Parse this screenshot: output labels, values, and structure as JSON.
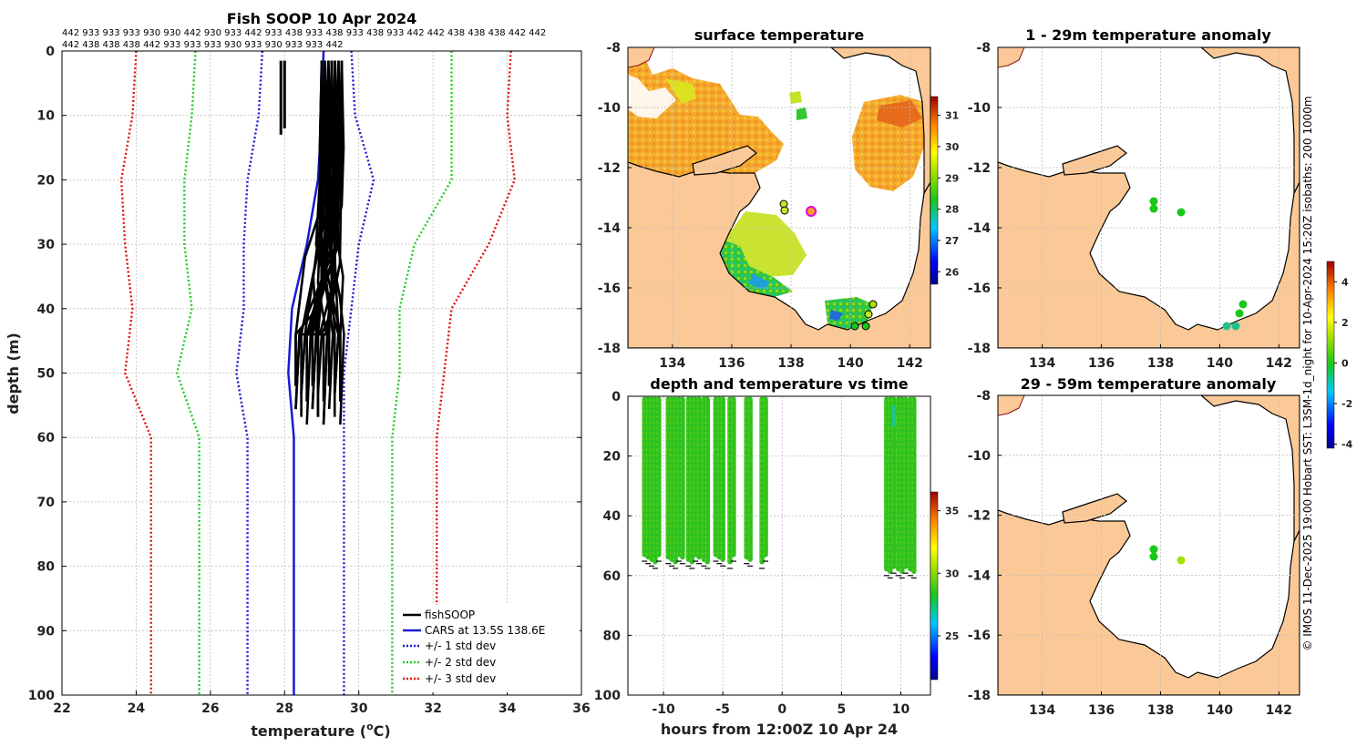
{
  "chart_data": [
    {
      "id": "profile",
      "type": "line",
      "title": "Fish SOOP 10 Apr 2024",
      "xlabel": "temperature (",
      "xlabel_unit": "C)",
      "xlabel_sup": "o",
      "ylabel": "depth (m)",
      "xlim": [
        22,
        36
      ],
      "ylim": [
        0,
        100
      ],
      "xticks": [
        "22",
        "24",
        "26",
        "28",
        "30",
        "32",
        "34",
        "36"
      ],
      "yticks": [
        "0",
        "10",
        "20",
        "30",
        "40",
        "50",
        "60",
        "70",
        "80",
        "90",
        "100"
      ],
      "header_row1": "442 933 933 933 930 930 442 930 933 442 933 438 933 438 933 438 933 442 442 438 438 438 442 442",
      "header_row2": "442 438 438 438 442 933 933 933 930 933 930 933 933 442",
      "legend": [
        "fishSOOP",
        "CARS at 13.5S 138.6E",
        "+/- 1 std dev",
        "+/- 2 std dev",
        "+/- 3 std dev"
      ],
      "colors": {
        "fishsoop": "#000000",
        "cars": "#1a1ad6",
        "std1": "#1a1ad6",
        "std2": "#22cc22",
        "std3": "#e01010"
      },
      "series": [
        {
          "name": "CARS",
          "points": [
            [
              29.05,
              0
            ],
            [
              29.0,
              10
            ],
            [
              28.9,
              20
            ],
            [
              28.6,
              30
            ],
            [
              28.2,
              40
            ],
            [
              28.1,
              50
            ],
            [
              28.25,
              60
            ],
            [
              28.25,
              80
            ],
            [
              28.25,
              100
            ]
          ]
        },
        {
          "name": "+1 std",
          "points": [
            [
              29.8,
              0
            ],
            [
              29.9,
              10
            ],
            [
              30.4,
              20
            ],
            [
              30.0,
              30
            ],
            [
              29.8,
              40
            ],
            [
              29.6,
              50
            ],
            [
              29.6,
              60
            ],
            [
              29.6,
              100
            ]
          ]
        },
        {
          "name": "-1 std",
          "points": [
            [
              27.4,
              0
            ],
            [
              27.3,
              10
            ],
            [
              27.0,
              20
            ],
            [
              26.9,
              30
            ],
            [
              26.9,
              40
            ],
            [
              26.7,
              50
            ],
            [
              27.0,
              60
            ],
            [
              27.0,
              100
            ]
          ]
        },
        {
          "name": "+2 std",
          "points": [
            [
              32.5,
              0
            ],
            [
              32.5,
              10
            ],
            [
              32.5,
              20
            ],
            [
              31.5,
              30
            ],
            [
              31.1,
              40
            ],
            [
              31.1,
              50
            ],
            [
              30.9,
              60
            ],
            [
              30.9,
              100
            ]
          ]
        },
        {
          "name": "-2 std",
          "points": [
            [
              25.6,
              0
            ],
            [
              25.5,
              10
            ],
            [
              25.3,
              20
            ],
            [
              25.3,
              30
            ],
            [
              25.5,
              40
            ],
            [
              25.1,
              50
            ],
            [
              25.7,
              60
            ],
            [
              25.7,
              100
            ]
          ]
        },
        {
          "name": "+3 std",
          "points": [
            [
              34.1,
              0
            ],
            [
              34.0,
              10
            ],
            [
              34.2,
              20
            ],
            [
              33.5,
              30
            ],
            [
              32.5,
              40
            ],
            [
              32.3,
              50
            ],
            [
              32.1,
              60
            ],
            [
              32.1,
              100
            ]
          ]
        },
        {
          "name": "-3 std",
          "points": [
            [
              24.0,
              0
            ],
            [
              23.9,
              10
            ],
            [
              23.6,
              20
            ],
            [
              23.7,
              30
            ],
            [
              23.9,
              40
            ],
            [
              23.7,
              50
            ],
            [
              24.4,
              60
            ],
            [
              24.4,
              100
            ]
          ]
        }
      ]
    },
    {
      "id": "sst_map",
      "type": "heatmap",
      "title": "surface temperature",
      "xlim": [
        132.5,
        142.7
      ],
      "ylim": [
        -18,
        -8
      ],
      "xticks": [
        "134",
        "136",
        "138",
        "140",
        "142"
      ],
      "yticks": [
        "-8",
        "-10",
        "-12",
        "-14",
        "-16",
        "-18"
      ],
      "colorbar": {
        "min": 25.6,
        "max": 31.6,
        "ticks": [
          "31",
          "30",
          "29",
          "28",
          "27",
          "26"
        ]
      }
    },
    {
      "id": "anom1",
      "type": "heatmap",
      "title": "1 - 29m temperature anomaly",
      "xlim": [
        132.5,
        142.7
      ],
      "ylim": [
        -18,
        -8
      ],
      "xticks": [
        "134",
        "136",
        "138",
        "140",
        "142"
      ],
      "yticks": [
        "-8",
        "-10",
        "-12",
        "-14",
        "-16",
        "-18"
      ],
      "colorbar": {
        "min": -4.2,
        "max": 5.0,
        "ticks": [
          "4",
          "2",
          "0",
          "-2",
          "-4"
        ]
      }
    },
    {
      "id": "time_depth",
      "type": "scatter",
      "title": "depth and temperature vs time",
      "xlabel": "hours from 12:00Z 10 Apr 24",
      "xlim": [
        -13,
        12.5
      ],
      "ylim": [
        0,
        100
      ],
      "xticks": [
        "-10",
        "-5",
        "0",
        "5",
        "10"
      ],
      "yticks": [
        "0",
        "20",
        "40",
        "60",
        "80",
        "100"
      ],
      "colorbar": {
        "min": 21.5,
        "max": 36.5,
        "ticks": [
          "35",
          "30",
          "25"
        ]
      },
      "casts": [
        -11.6,
        -11.3,
        -11.0,
        -10.7,
        -10.4,
        -9.6,
        -9.3,
        -9.0,
        -8.7,
        -8.4,
        -7.9,
        -7.6,
        -7.3,
        -7.0,
        -6.6,
        -6.3,
        -5.6,
        -5.3,
        -5.0,
        -4.4,
        -4.1,
        -3.0,
        -2.7,
        -1.7,
        -1.4,
        8.8,
        9.1,
        9.4,
        9.8,
        10.1,
        10.4,
        10.8,
        11.1
      ]
    },
    {
      "id": "anom2",
      "type": "heatmap",
      "title": "29 - 59m temperature anomaly",
      "xlim": [
        132.5,
        142.7
      ],
      "ylim": [
        -18,
        -8
      ],
      "xticks": [
        "134",
        "136",
        "138",
        "140",
        "142"
      ],
      "yticks": [
        "-8",
        "-10",
        "-12",
        "-14",
        "-16",
        "-18"
      ]
    }
  ],
  "footer": "© IMOS 11-Dec-2025 19:00 Hobart SST: L3SM-1d_night for 10-Apr-2024 15:20Z isobaths: 200  1000m"
}
